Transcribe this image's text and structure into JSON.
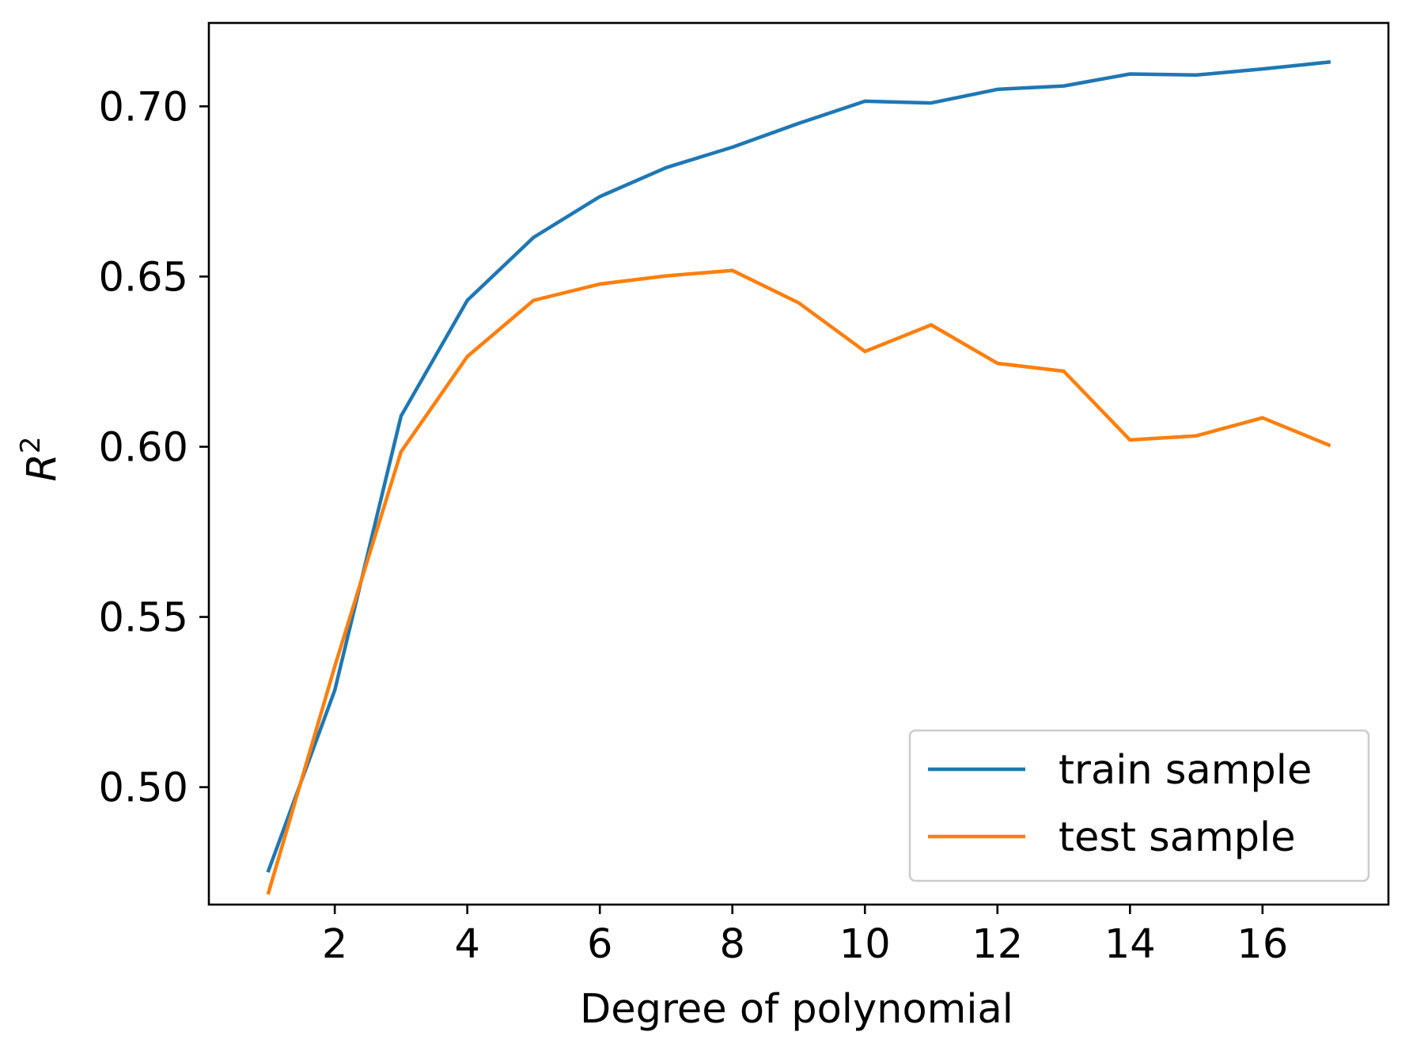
{
  "chart_data": {
    "type": "line",
    "title": "",
    "xlabel": "Degree of polynomial",
    "ylabel_base": "R",
    "ylabel_sup": "2",
    "xlim": [
      0.1,
      17.9
    ],
    "ylim": [
      0.4655,
      0.7245
    ],
    "x_ticks": [
      2,
      4,
      6,
      8,
      10,
      12,
      14,
      16
    ],
    "y_ticks": [
      0.5,
      0.55,
      0.6,
      0.65,
      0.7
    ],
    "x_tick_labels": [
      "2",
      "4",
      "6",
      "8",
      "10",
      "12",
      "14",
      "16"
    ],
    "y_tick_labels": [
      "0.50",
      "0.55",
      "0.60",
      "0.65",
      "0.70"
    ],
    "grid": false,
    "legend_position": "lower-right",
    "x": [
      1,
      2,
      3,
      4,
      5,
      6,
      7,
      8,
      9,
      10,
      11,
      12,
      13,
      14,
      15,
      16,
      17
    ],
    "series": [
      {
        "name": "train sample",
        "color": "#1f77b4",
        "values": [
          0.4755,
          0.5285,
          0.609,
          0.643,
          0.6615,
          0.6735,
          0.682,
          0.688,
          0.695,
          0.7015,
          0.701,
          0.705,
          0.706,
          0.7095,
          0.7092,
          0.711,
          0.713
        ]
      },
      {
        "name": "test sample",
        "color": "#ff7f0e",
        "values": [
          0.469,
          0.5355,
          0.5985,
          0.6265,
          0.643,
          0.6478,
          0.6502,
          0.6518,
          0.6423,
          0.628,
          0.6358,
          0.6245,
          0.6222,
          0.602,
          0.6032,
          0.6085,
          0.6005
        ]
      }
    ]
  }
}
